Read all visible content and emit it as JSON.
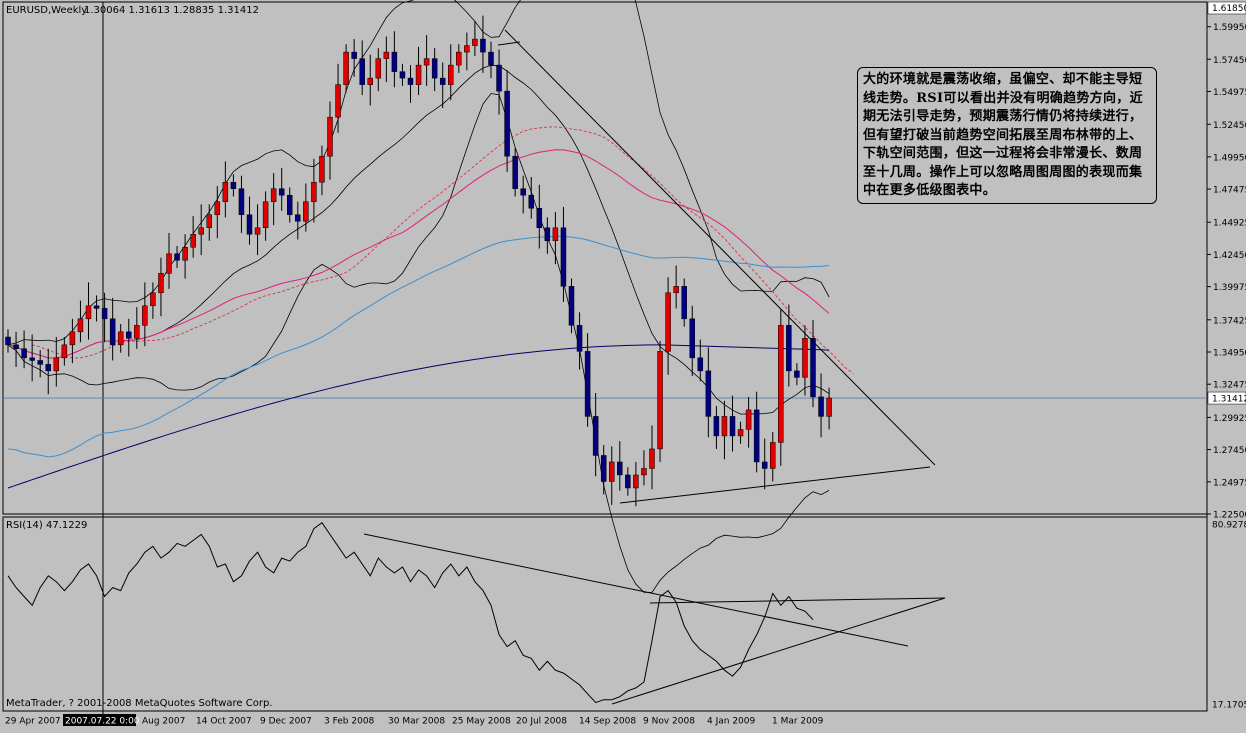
{
  "window": {
    "main_label": "EURUSD,Weekly",
    "main_ohlc": "1.30064 1.31613 1.28835 1.31412",
    "rsi_label": "RSI(14) 47.1229",
    "copyright": "MetaTrader, ? 2001-2008 MetaQuotes Software Corp.",
    "cursor_date": "2007.07.22 0:00"
  },
  "annotation_text": "大的环境就是震荡收缩，虽偏空、却不能主导短线走势。RSI可以看出并没有明确趋势方向，近期无法引导走势，预期震荡行情仍将持续进行，但有望打破当前趋势空间拓展至周布林带的上、下轨空间范围，但这一过程将会非常漫长、数周至十几周。操作上可以忽略周图周图的表现而集中在更多低级图表中。",
  "colors": {
    "background": "#c0c0c0",
    "bull": "#e00000",
    "bear": "#000080",
    "bollinger": "#000000",
    "ma_pink": "#e0207a",
    "ma_pink_dashed": "#e03040",
    "ma_blue": "#3b8fd0",
    "ma_navy": "#000066",
    "price_line": "#5b7fb0"
  },
  "chart_data": [
    {
      "type": "candlestick",
      "symbol": "EURUSD",
      "timeframe": "Weekly",
      "title": "EURUSD,Weekly",
      "last_ohlc": {
        "open": 1.30064,
        "high": 1.31613,
        "low": 1.28835,
        "close": 1.31412
      },
      "current_price": "1.31412",
      "ylim": [
        1.225,
        1.6185
      ],
      "y_ticks": [
        "1.61850",
        "1.59950",
        "1.57450",
        "1.54975",
        "1.52450",
        "1.49950",
        "1.47475",
        "1.44925",
        "1.42450",
        "1.39975",
        "1.37425",
        "1.34950",
        "1.32475",
        "1.31412",
        "1.29925",
        "1.27450",
        "1.24975",
        "1.22500"
      ],
      "x_ticks": [
        "29 Apr 2007",
        "2007.07.22 0:00",
        "Aug 2007",
        "14 Oct 2007",
        "9 Dec 2007",
        "3 Feb 2008",
        "30 Mar 2008",
        "25 May 2008",
        "20 Jul 2008",
        "14 Sep 2008",
        "9 Nov 2008",
        "4 Jan 2009",
        "1 Mar 2009"
      ],
      "closes": [
        1.355,
        1.352,
        1.345,
        1.343,
        1.34,
        1.335,
        1.345,
        1.355,
        1.365,
        1.375,
        1.385,
        1.383,
        1.375,
        1.355,
        1.365,
        1.36,
        1.37,
        1.385,
        1.395,
        1.41,
        1.425,
        1.42,
        1.43,
        1.44,
        1.445,
        1.455,
        1.465,
        1.48,
        1.475,
        1.455,
        1.44,
        1.445,
        1.465,
        1.475,
        1.47,
        1.455,
        1.45,
        1.465,
        1.48,
        1.5,
        1.53,
        1.555,
        1.58,
        1.575,
        1.555,
        1.56,
        1.575,
        1.58,
        1.565,
        1.56,
        1.555,
        1.57,
        1.575,
        1.56,
        1.555,
        1.57,
        1.58,
        1.585,
        1.59,
        1.58,
        1.57,
        1.55,
        1.5,
        1.475,
        1.47,
        1.46,
        1.445,
        1.435,
        1.445,
        1.4,
        1.37,
        1.35,
        1.3,
        1.27,
        1.25,
        1.265,
        1.255,
        1.245,
        1.255,
        1.26,
        1.275,
        1.35,
        1.395,
        1.4,
        1.375,
        1.345,
        1.335,
        1.3,
        1.285,
        1.3,
        1.285,
        1.29,
        1.305,
        1.265,
        1.26,
        1.28,
        1.37,
        1.335,
        1.33,
        1.36,
        1.315,
        1.3,
        1.31412
      ]
    },
    {
      "type": "line",
      "title": "RSI(14) 47.1229",
      "current_value": "47.1229",
      "y_ticks": [
        "80.9278",
        "17.1705"
      ],
      "ylim": [
        17.1705,
        80.9278
      ],
      "values": [
        62,
        58,
        55,
        52,
        58,
        62,
        60,
        57,
        60,
        64,
        66,
        62,
        55,
        58,
        57,
        63,
        66,
        70,
        72,
        68,
        70,
        73,
        72,
        74,
        76,
        72,
        65,
        66,
        60,
        62,
        67,
        70,
        65,
        63,
        68,
        67,
        70,
        72,
        78,
        80,
        76,
        72,
        68,
        70,
        66,
        62,
        68,
        65,
        63,
        65,
        60,
        64,
        62,
        58,
        63,
        66,
        62,
        65,
        60,
        57,
        52,
        42,
        38,
        40,
        35,
        34,
        30,
        33,
        30,
        29,
        27,
        25,
        22,
        19,
        20,
        20,
        21,
        23,
        24,
        26,
        40,
        55,
        57,
        53,
        45,
        40,
        37,
        35,
        33,
        30,
        28,
        31,
        37,
        42,
        48,
        56,
        52,
        55,
        51,
        50,
        47.1229
      ]
    }
  ]
}
